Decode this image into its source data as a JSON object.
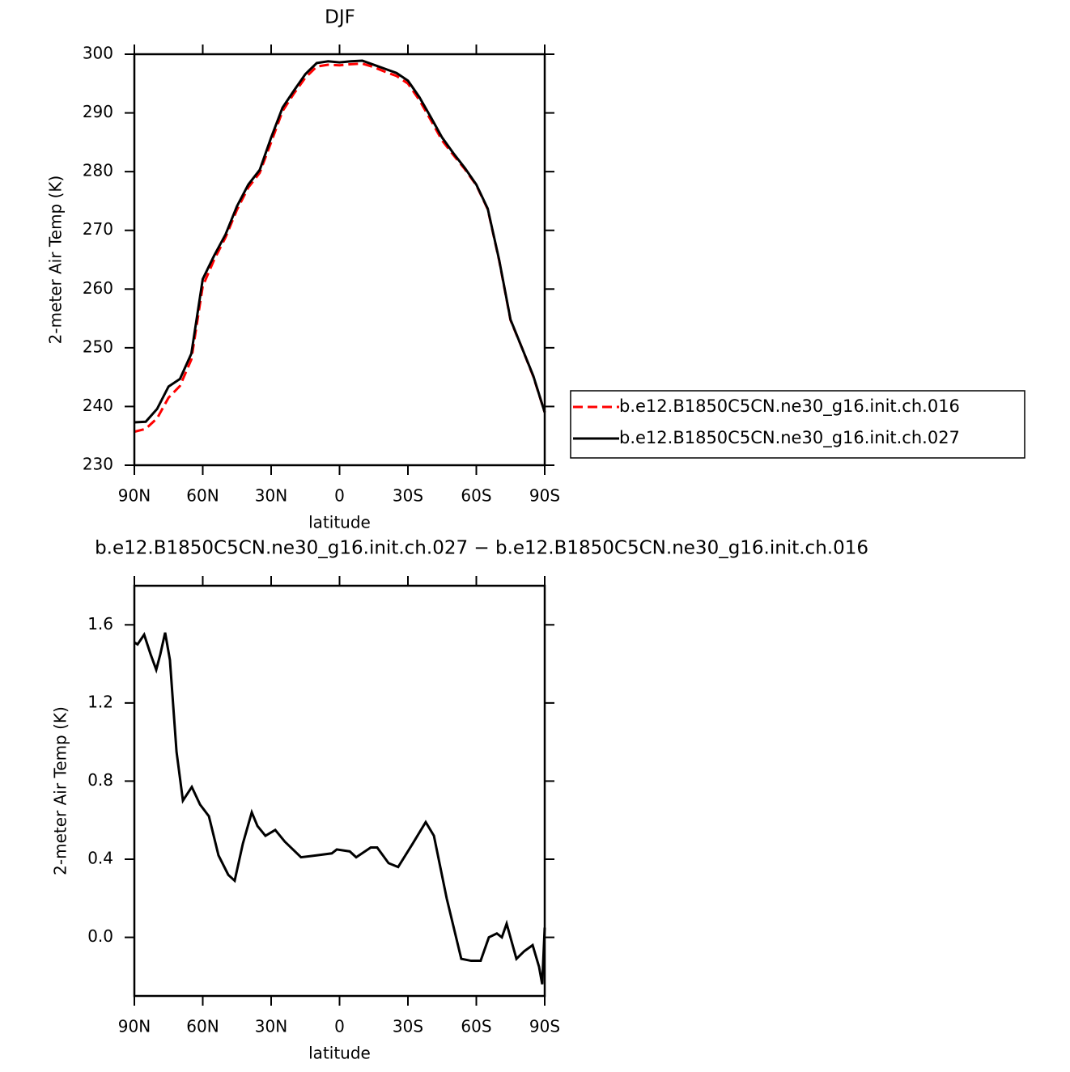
{
  "chart_data": [
    {
      "type": "line",
      "title": "DJF",
      "ylabel": "2-meter Air Temp (K)",
      "xlabel": "latitude",
      "x": [
        90,
        85,
        80,
        75,
        70,
        65,
        60,
        55,
        50,
        45,
        40,
        35,
        30,
        25,
        20,
        15,
        10,
        5,
        0,
        -5,
        -10,
        -15,
        -20,
        -25,
        -30,
        -35,
        -40,
        -45,
        -50,
        -55,
        -60,
        -65,
        -70,
        -75,
        -80,
        -85,
        -90
      ],
      "series": [
        {
          "name": "b.e12.B1850C5CN.ne30_g16.init.ch.016",
          "color": "#ff0000",
          "dash": "dashed",
          "values": [
            235.7,
            236.2,
            238,
            241.5,
            243.5,
            248,
            260.5,
            265,
            268.8,
            273.5,
            277.3,
            279.8,
            285,
            290.3,
            293.3,
            296,
            297.9,
            298.2,
            298.1,
            298.3,
            298.4,
            297.8,
            297,
            296.3,
            295,
            292.2,
            288.8,
            285.3,
            282.8,
            280.4,
            277.7,
            273.6,
            264.9,
            254.7,
            250,
            245.1,
            239
          ]
        },
        {
          "name": "b.e12.B1850C5CN.ne30_g16.init.ch.027",
          "color": "#000000",
          "dash": "solid",
          "values": [
            237.3,
            237.4,
            239.6,
            243.4,
            244.7,
            249,
            261.7,
            265.7,
            269.3,
            274.1,
            277.8,
            280.3,
            285.8,
            290.9,
            293.8,
            296.6,
            298.5,
            298.8,
            298.6,
            298.8,
            298.9,
            298.2,
            297.5,
            296.8,
            295.5,
            292.7,
            289.3,
            285.8,
            283.1,
            280.6,
            277.8,
            273.7,
            265,
            254.8,
            250,
            245.2,
            239
          ]
        }
      ],
      "xlim": [
        90,
        -90
      ],
      "xticks": [
        {
          "value": 90,
          "label": "90N"
        },
        {
          "value": 60,
          "label": "60N"
        },
        {
          "value": 30,
          "label": "30N"
        },
        0,
        {
          "value": -30,
          "label": "30S"
        },
        {
          "value": -60,
          "label": "60S"
        },
        {
          "value": -90,
          "label": "90S"
        }
      ],
      "ylim": [
        230,
        300
      ],
      "yticks": [
        230,
        240,
        250,
        260,
        270,
        280,
        290,
        300
      ],
      "legend": "right"
    },
    {
      "type": "line",
      "title": "b.e12.B1850C5CN.ne30_g16.init.ch.027 − b.e12.B1850C5CN.ne30_g16.init.ch.016",
      "ylabel": "2-meter Air Temp (K)",
      "xlabel": "latitude",
      "x": [
        90,
        88.6,
        85.7,
        82.9,
        80.4,
        78.6,
        76.5,
        74.4,
        71.5,
        68.7,
        64.8,
        61.2,
        57.3,
        53.1,
        48.8,
        46,
        42.4,
        38.5,
        36,
        32.5,
        28.2,
        24,
        16.9,
        9.8,
        3.4,
        1.2,
        -4.5,
        -7.3,
        -13.7,
        -16.5,
        -21.5,
        -25.7,
        -32.1,
        -37.8,
        -41.4,
        -47,
        -53.4,
        -57.7,
        -61.9,
        -65.5,
        -69,
        -71.2,
        -73.3,
        -77.6,
        -81.1,
        -84.7,
        -87.5,
        -88.9,
        -90
      ],
      "series": [
        {
          "color": "#000000",
          "dash": "solid",
          "values": [
            1.51,
            1.5,
            1.55,
            1.45,
            1.37,
            1.45,
            1.56,
            1.42,
            0.95,
            0.7,
            0.77,
            0.68,
            0.62,
            0.42,
            0.32,
            0.29,
            0.48,
            0.64,
            0.57,
            0.52,
            0.55,
            0.49,
            0.41,
            0.42,
            0.43,
            0.45,
            0.44,
            0.41,
            0.46,
            0.46,
            0.38,
            0.36,
            0.48,
            0.59,
            0.52,
            0.2,
            -0.11,
            -0.12,
            -0.12,
            0,
            0.02,
            0,
            0.07,
            -0.11,
            -0.07,
            -0.04,
            -0.15,
            -0.24,
            0.05
          ]
        }
      ],
      "xlim": [
        90,
        -90
      ],
      "xticks": [
        {
          "value": 90,
          "label": "90N"
        },
        {
          "value": 60,
          "label": "60N"
        },
        {
          "value": 30,
          "label": "30N"
        },
        0,
        {
          "value": -30,
          "label": "30S"
        },
        {
          "value": -60,
          "label": "60S"
        },
        {
          "value": -90,
          "label": "90S"
        }
      ],
      "ylim": [
        -0.3,
        1.8
      ],
      "yticks": [
        {
          "value": 0,
          "label": "0.0"
        },
        0.4,
        0.8,
        1.2,
        1.6
      ]
    }
  ]
}
